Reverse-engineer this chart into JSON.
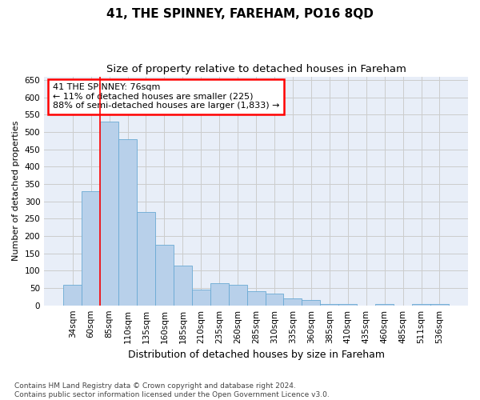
{
  "title": "41, THE SPINNEY, FAREHAM, PO16 8QD",
  "subtitle": "Size of property relative to detached houses in Fareham",
  "xlabel": "Distribution of detached houses by size in Fareham",
  "ylabel": "Number of detached properties",
  "categories": [
    "34sqm",
    "60sqm",
    "85sqm",
    "110sqm",
    "135sqm",
    "160sqm",
    "185sqm",
    "210sqm",
    "235sqm",
    "260sqm",
    "285sqm",
    "310sqm",
    "335sqm",
    "360sqm",
    "385sqm",
    "410sqm",
    "435sqm",
    "460sqm",
    "485sqm",
    "511sqm",
    "536sqm"
  ],
  "values": [
    60,
    330,
    530,
    480,
    270,
    175,
    115,
    45,
    65,
    60,
    40,
    35,
    20,
    15,
    5,
    5,
    0,
    5,
    0,
    5,
    5
  ],
  "bar_color": "#b8d0ea",
  "bar_edge_color": "#6aaad4",
  "red_line_x": 1.5,
  "annotation_text": "41 THE SPINNEY: 76sqm\n← 11% of detached houses are smaller (225)\n88% of semi-detached houses are larger (1,833) →",
  "annotation_box_facecolor": "white",
  "annotation_box_edgecolor": "red",
  "ylim": [
    0,
    660
  ],
  "yticks": [
    0,
    50,
    100,
    150,
    200,
    250,
    300,
    350,
    400,
    450,
    500,
    550,
    600,
    650
  ],
  "grid_color": "#cccccc",
  "background_color": "#e8eef8",
  "footnote": "Contains HM Land Registry data © Crown copyright and database right 2024.\nContains public sector information licensed under the Open Government Licence v3.0.",
  "title_fontsize": 11,
  "subtitle_fontsize": 9.5,
  "xlabel_fontsize": 9,
  "ylabel_fontsize": 8,
  "tick_fontsize": 7.5,
  "annotation_fontsize": 8,
  "footnote_fontsize": 6.5
}
